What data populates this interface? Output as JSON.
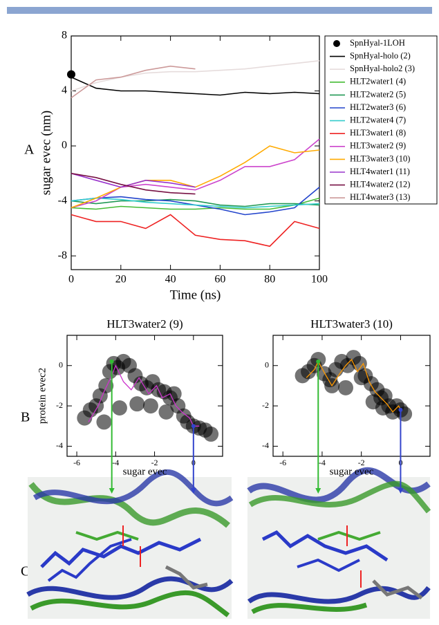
{
  "panel_labels": [
    "A",
    "B",
    "C"
  ],
  "chart_data": [
    {
      "type": "line",
      "ylabel": "sugar evec (nm)",
      "xlabel": "Time (ns)",
      "xlim": [
        0,
        100
      ],
      "xticks": [
        0,
        20,
        40,
        60,
        80,
        100
      ],
      "ylim": [
        -9,
        8
      ],
      "yticks": [
        -8,
        -4,
        0,
        4,
        8
      ],
      "x": [
        0,
        10,
        20,
        30,
        40,
        50,
        60,
        70,
        80,
        90,
        100
      ],
      "series": [
        {
          "name": "SpnHyal-1LOH",
          "color": "#000000",
          "style": "point",
          "values": [
            5.2,
            null,
            null,
            null,
            null,
            null,
            null,
            null,
            null,
            null,
            null
          ]
        },
        {
          "name": "SpnHyal-holo (2)",
          "color": "#000000",
          "style": "line",
          "values": [
            5.0,
            4.2,
            4.0,
            4.0,
            3.9,
            3.8,
            3.7,
            3.9,
            3.8,
            3.9,
            3.8
          ]
        },
        {
          "name": "SpnHyal-holo2 (3)",
          "color": "#e6dcdc",
          "style": "line",
          "values": [
            4.0,
            4.6,
            5.0,
            5.3,
            5.4,
            5.4,
            5.5,
            5.6,
            5.8,
            6.0,
            6.2
          ]
        },
        {
          "name": "HLT2water1 (4)",
          "color": "#44bb33",
          "style": "line",
          "values": [
            -4.5,
            -4.6,
            -4.4,
            -4.5,
            -4.6,
            -4.6,
            -4.5,
            -4.6,
            -4.6,
            -4.3,
            -3.8
          ]
        },
        {
          "name": "HLT2water2 (5)",
          "color": "#229955",
          "style": "line",
          "values": [
            -4.0,
            -4.2,
            -4.0,
            -4.0,
            -3.9,
            -4.0,
            -4.3,
            -4.4,
            -4.2,
            -4.2,
            -4.3
          ]
        },
        {
          "name": "HLT2water3 (6)",
          "color": "#2244cc",
          "style": "line",
          "values": [
            -4.0,
            -3.8,
            -3.7,
            -3.9,
            -4.0,
            -4.3,
            -4.6,
            -5.0,
            -4.8,
            -4.5,
            -3.0
          ]
        },
        {
          "name": "HLT2water4 (7)",
          "color": "#33cccc",
          "style": "line",
          "values": [
            -4.0,
            -3.8,
            -3.9,
            -4.1,
            -4.2,
            -4.3,
            -4.4,
            -4.5,
            -4.4,
            -4.3,
            -4.2
          ]
        },
        {
          "name": "HLT3water1 (8)",
          "color": "#ee2222",
          "style": "line",
          "values": [
            -5.0,
            -5.5,
            -5.5,
            -6.0,
            -5.0,
            -6.5,
            -6.8,
            -6.9,
            -7.3,
            -5.5,
            -6.0
          ]
        },
        {
          "name": "HLT3water2 (9)",
          "color": "#cc44cc",
          "style": "line",
          "values": [
            -4.5,
            -4.0,
            -3.0,
            -2.8,
            -3.0,
            -3.2,
            -2.5,
            -1.5,
            -1.5,
            -1.0,
            0.5
          ]
        },
        {
          "name": "HLT3water3 (10)",
          "color": "#ffaa00",
          "style": "line",
          "values": [
            -4.5,
            -3.8,
            -3.0,
            -2.5,
            -2.5,
            -3.0,
            -2.2,
            -1.2,
            0.0,
            -0.5,
            -0.3
          ]
        },
        {
          "name": "HLT4water1 (11)",
          "color": "#9933cc",
          "style": "line",
          "values": [
            -2.0,
            -2.5,
            -3.0,
            -2.5,
            -2.7,
            -3.0,
            null,
            null,
            null,
            null,
            null
          ]
        },
        {
          "name": "HLT4water2 (12)",
          "color": "#771144",
          "style": "line",
          "values": [
            -2.0,
            -2.3,
            -2.8,
            -3.2,
            -3.4,
            -3.5,
            null,
            null,
            null,
            null,
            null
          ]
        },
        {
          "name": "HLT4water3 (13)",
          "color": "#cc9999",
          "style": "line",
          "values": [
            3.5,
            4.8,
            5.0,
            5.5,
            5.8,
            5.6,
            null,
            null,
            null,
            null,
            null
          ]
        }
      ]
    },
    {
      "type": "scatter",
      "title": "HLT3water2 (9)",
      "xlabel": "sugar evec",
      "ylabel": "protein evec2",
      "xlim": [
        -6.5,
        1.5
      ],
      "xticks": [
        -6,
        -4,
        -2,
        0
      ],
      "ylim": [
        -4.5,
        1.5
      ],
      "yticks": [
        -4,
        -2,
        0
      ],
      "points": {
        "color": "#000000",
        "x": [
          -5.6,
          -5.3,
          -5.0,
          -4.8,
          -4.5,
          -4.3,
          -4.1,
          -3.9,
          -3.6,
          -3.3,
          -3.0,
          -2.7,
          -2.4,
          -2.1,
          -1.8,
          -1.5,
          -1.2,
          -1.0,
          -0.8,
          -0.5,
          -0.3,
          0.0,
          0.3,
          0.6,
          0.9,
          -4.6,
          -3.8,
          -2.9,
          -2.2,
          -1.4
        ],
        "y": [
          -2.6,
          -2.2,
          -2.0,
          -1.5,
          -1.0,
          -0.3,
          0.1,
          -0.1,
          0.2,
          0.0,
          -0.5,
          -0.9,
          -1.1,
          -0.8,
          -1.2,
          -1.3,
          -1.6,
          -1.4,
          -2.0,
          -2.5,
          -2.8,
          -3.0,
          -3.1,
          -3.2,
          -3.4,
          -2.8,
          -2.1,
          -1.9,
          -2.0,
          -2.3
        ]
      },
      "trajectory": {
        "color": "#cc33cc",
        "x": [
          -5.4,
          -4.9,
          -4.6,
          -4.2,
          -4.0,
          -3.6,
          -3.2,
          -2.8,
          -2.3,
          -1.9,
          -1.6,
          -1.2,
          -0.9,
          -0.6,
          -0.2,
          0.0,
          0.3
        ],
        "y": [
          -2.8,
          -2.0,
          -1.3,
          -0.5,
          0.0,
          -0.8,
          -1.2,
          -0.6,
          -1.4,
          -1.0,
          -1.6,
          -1.4,
          -2.0,
          -2.3,
          -2.6,
          -3.0,
          -3.0
        ]
      },
      "markers": [
        {
          "x": -4.2,
          "y": 0.2,
          "color": "#33bb33"
        },
        {
          "x": 0.0,
          "y": -3.0,
          "color": "#3344cc"
        }
      ]
    },
    {
      "type": "scatter",
      "title": "HLT3water3 (10)",
      "xlabel": "sugar evec",
      "xlim": [
        -6.5,
        1.5
      ],
      "xticks": [
        -6,
        -4,
        -2,
        0
      ],
      "ylim": [
        -4.5,
        1.5
      ],
      "yticks": [
        -4,
        -2,
        0
      ],
      "points": {
        "color": "#000000",
        "x": [
          -5.0,
          -4.7,
          -4.4,
          -4.2,
          -3.9,
          -3.6,
          -3.3,
          -3.0,
          -2.7,
          -2.4,
          -2.1,
          -1.8,
          -1.5,
          -1.2,
          -1.0,
          -0.8,
          -0.6,
          -0.4,
          -0.2,
          0.0,
          0.2,
          -3.5,
          -2.8,
          -2.0,
          -1.4,
          -0.9
        ],
        "y": [
          -0.5,
          -0.3,
          0.0,
          0.3,
          -0.4,
          -0.7,
          -0.2,
          0.2,
          0.0,
          0.4,
          0.1,
          -0.5,
          -0.9,
          -1.2,
          -1.6,
          -1.5,
          -2.0,
          -2.3,
          -2.0,
          -2.2,
          -2.4,
          -1.0,
          -1.1,
          -0.6,
          -1.8,
          -2.1
        ]
      },
      "trajectory": {
        "color": "#ff9900",
        "x": [
          -4.8,
          -4.4,
          -4.2,
          -3.8,
          -3.5,
          -3.1,
          -2.8,
          -2.5,
          -2.2,
          -1.9,
          -1.6,
          -1.3,
          -1.0,
          -0.7,
          -0.4,
          -0.1,
          0.0
        ],
        "y": [
          -0.6,
          -0.2,
          0.2,
          -0.5,
          -1.0,
          -0.4,
          0.0,
          0.3,
          -0.3,
          0.1,
          -0.8,
          -1.3,
          -1.6,
          -1.9,
          -2.3,
          -2.0,
          -2.2
        ]
      },
      "markers": [
        {
          "x": -4.2,
          "y": 0.2,
          "color": "#33bb33"
        },
        {
          "x": 0.0,
          "y": -2.2,
          "color": "#3344cc"
        }
      ]
    }
  ]
}
